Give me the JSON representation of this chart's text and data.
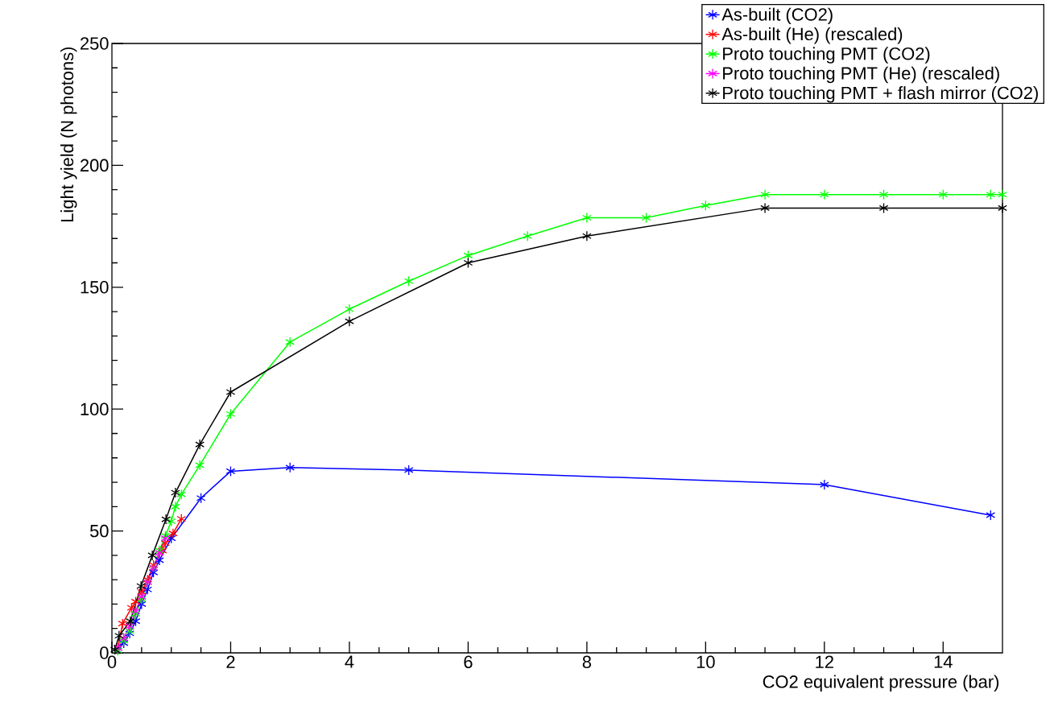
{
  "chart_data": {
    "type": "line",
    "xlabel": "CO2 equivalent pressure (bar)",
    "ylabel": "Light yield (N photons)",
    "xlim": [
      0,
      15
    ],
    "ylim": [
      0,
      250
    ],
    "xticks": [
      0,
      2,
      4,
      6,
      8,
      10,
      12,
      14
    ],
    "yticks": [
      0,
      50,
      100,
      150,
      200,
      250
    ],
    "grid": false,
    "legend": "top right",
    "marker": "cross",
    "line_style": "solid",
    "series": [
      {
        "name": "As-built (CO2)",
        "color": "#0000ff",
        "x": [
          0.1,
          0.2,
          0.3,
          0.4,
          0.5,
          0.6,
          0.7,
          0.8,
          1.0,
          1.5,
          2,
          3,
          5,
          12,
          14.8
        ],
        "values": [
          1,
          4,
          8,
          13,
          20,
          26,
          33,
          38,
          47,
          63.5,
          74.5,
          76,
          75,
          69,
          56.5
        ]
      },
      {
        "name": "As-built (He) (rescaled)",
        "color": "#ff0000",
        "x": [
          0.1,
          0.18,
          0.33,
          0.4,
          0.5,
          0.6,
          0.7,
          0.85,
          0.9,
          1.03,
          1.17
        ],
        "values": [
          2,
          12,
          18.5,
          21,
          25,
          30,
          36,
          42,
          45,
          49,
          55
        ]
      },
      {
        "name": "Proto touching PMT (CO2)",
        "color": "#00ff00",
        "x": [
          0.1,
          0.2,
          0.3,
          0.4,
          0.5,
          0.6,
          0.7,
          0.8,
          0.9,
          1.0,
          1.07,
          1.17,
          1.48,
          2,
          3,
          4,
          5,
          6,
          7,
          8,
          9,
          10,
          11,
          12,
          13,
          14,
          14.8,
          15
        ],
        "values": [
          1,
          5,
          9,
          16,
          22,
          29,
          35,
          42,
          48,
          54,
          60,
          65,
          77,
          98,
          127.5,
          141,
          152.5,
          163,
          171,
          178.5,
          178.5,
          183.5,
          188,
          188,
          188,
          188,
          188,
          188
        ]
      },
      {
        "name": "Proto touching PMT (He) (rescaled)",
        "color": "#ff00ff",
        "x": [
          0.1,
          0.2,
          0.3,
          0.4,
          0.5,
          0.6,
          0.7,
          0.8,
          0.9
        ],
        "values": [
          2,
          6,
          11,
          17,
          23,
          29,
          35,
          41,
          47
        ]
      },
      {
        "name": "Proto touching PMT + flash mirror (CO2)",
        "color": "#000000",
        "x": [
          0.05,
          0.12,
          0.31,
          0.49,
          0.68,
          0.91,
          1.07,
          1.48,
          2,
          4,
          6,
          8,
          11,
          13,
          15
        ],
        "values": [
          1.3,
          7,
          13,
          27.4,
          40,
          54.8,
          65.7,
          85.5,
          107,
          136,
          160,
          171,
          182.5,
          182.5,
          182.5
        ]
      }
    ]
  }
}
